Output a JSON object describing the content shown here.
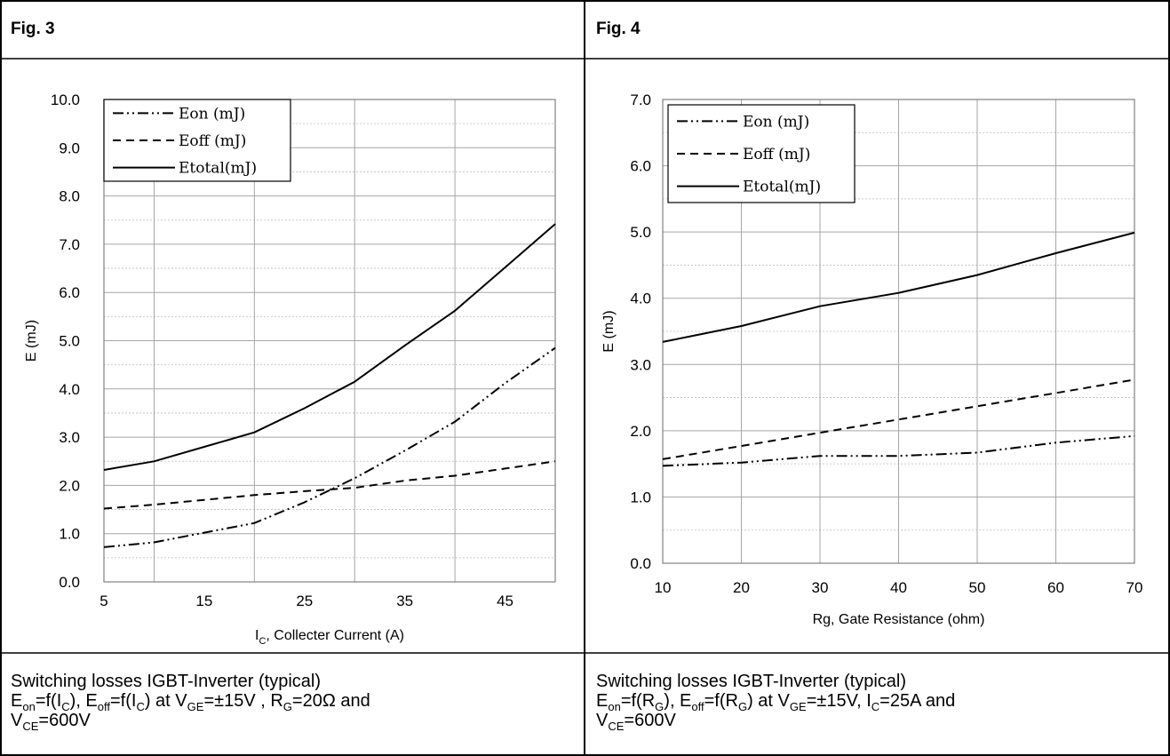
{
  "figures": [
    {
      "title": "Fig. 3",
      "caption": {
        "line1": "Switching losses IGBT-Inverter (typical)",
        "line2": [
          {
            "t": "E"
          },
          {
            "t": "on",
            "sub": true
          },
          {
            "t": "=f(I"
          },
          {
            "t": "C",
            "sub": true
          },
          {
            "t": "), E"
          },
          {
            "t": "off",
            "sub": true
          },
          {
            "t": "=f(I"
          },
          {
            "t": "C",
            "sub": true
          },
          {
            "t": ") at V"
          },
          {
            "t": "GE",
            "sub": true
          },
          {
            "t": "=±15V , R"
          },
          {
            "t": "G",
            "sub": true
          },
          {
            "t": "=20Ω and"
          }
        ],
        "line3": [
          {
            "t": "V"
          },
          {
            "t": "CE",
            "sub": true
          },
          {
            "t": "=600V"
          }
        ]
      }
    },
    {
      "title": "Fig. 4",
      "caption": {
        "line1": "Switching losses IGBT-Inverter (typical)",
        "line2": [
          {
            "t": "E"
          },
          {
            "t": "on",
            "sub": true
          },
          {
            "t": "=f(R"
          },
          {
            "t": "G",
            "sub": true
          },
          {
            "t": "), E"
          },
          {
            "t": "off",
            "sub": true
          },
          {
            "t": "=f(R"
          },
          {
            "t": "G",
            "sub": true
          },
          {
            "t": ") at V"
          },
          {
            "t": "GE",
            "sub": true
          },
          {
            "t": "=±15V, I"
          },
          {
            "t": "C",
            "sub": true
          },
          {
            "t": "=25A and"
          }
        ],
        "line3": [
          {
            "t": "V"
          },
          {
            "t": "CE",
            "sub": true
          },
          {
            "t": "=600V"
          }
        ]
      }
    }
  ],
  "chart_data": [
    {
      "type": "line",
      "xlabel": "I",
      "xlabel_sub": "C",
      "xlabel_rest": ", Collecter Current (A)",
      "ylabel": "E (mJ)",
      "xlim": [
        5,
        50
      ],
      "ylim": [
        0,
        10
      ],
      "xticks": [
        5,
        15,
        25,
        35,
        45
      ],
      "xtick_labels": [
        "5",
        "15",
        "25",
        "35",
        "45"
      ],
      "yticks": [
        0,
        1,
        2,
        3,
        4,
        5,
        6,
        7,
        8,
        9,
        10
      ],
      "ytick_labels": [
        "0.0",
        "1.0",
        "2.0",
        "3.0",
        "4.0",
        "5.0",
        "6.0",
        "7.0",
        "8.0",
        "9.0",
        "10.0"
      ],
      "vgrid": [
        10,
        20,
        30,
        40,
        50
      ],
      "legend": "top-left",
      "series": [
        {
          "name": "Eon (mJ)",
          "style": "dashdotdot",
          "x": [
            5,
            10,
            15,
            20,
            25,
            30,
            35,
            40,
            45,
            50
          ],
          "y": [
            0.72,
            0.82,
            1.02,
            1.22,
            1.65,
            2.15,
            2.72,
            3.32,
            4.12,
            4.85
          ]
        },
        {
          "name": "Eoff (mJ)",
          "style": "dash",
          "x": [
            5,
            10,
            15,
            20,
            25,
            30,
            35,
            40,
            45,
            50
          ],
          "y": [
            1.52,
            1.6,
            1.7,
            1.8,
            1.88,
            1.95,
            2.1,
            2.2,
            2.35,
            2.5
          ]
        },
        {
          "name": "Etotal(mJ)",
          "style": "solid",
          "x": [
            5,
            10,
            15,
            20,
            25,
            30,
            35,
            40,
            45,
            50
          ],
          "y": [
            2.32,
            2.5,
            2.8,
            3.1,
            3.6,
            4.15,
            4.9,
            5.62,
            6.52,
            7.42
          ]
        }
      ]
    },
    {
      "type": "line",
      "xlabel": "Rg, Gate Resistance (ohm)",
      "ylabel": "E (mJ)",
      "xlim": [
        10,
        70
      ],
      "ylim": [
        0,
        7
      ],
      "xticks": [
        10,
        20,
        30,
        40,
        50,
        60,
        70
      ],
      "xtick_labels": [
        "10",
        "20",
        "30",
        "40",
        "50",
        "60",
        "70"
      ],
      "yticks": [
        0,
        1,
        2,
        3,
        4,
        5,
        6,
        7
      ],
      "ytick_labels": [
        "0.0",
        "1.0",
        "2.0",
        "3.0",
        "4.0",
        "5.0",
        "6.0",
        "7.0"
      ],
      "legend": "top-left",
      "series": [
        {
          "name": "Eon (mJ)",
          "style": "dashdotdot",
          "x": [
            10,
            20,
            30,
            40,
            50,
            60,
            70
          ],
          "y": [
            1.47,
            1.52,
            1.62,
            1.62,
            1.67,
            1.82,
            1.92
          ]
        },
        {
          "name": "Eoff (mJ)",
          "style": "dash",
          "x": [
            10,
            20,
            30,
            40,
            50,
            60,
            70
          ],
          "y": [
            1.57,
            1.77,
            1.97,
            2.17,
            2.37,
            2.57,
            2.77
          ]
        },
        {
          "name": "Etotal(mJ)",
          "style": "solid",
          "x": [
            10,
            20,
            30,
            40,
            50,
            60,
            70
          ],
          "y": [
            3.34,
            3.58,
            3.88,
            4.08,
            4.35,
            4.68,
            4.99
          ]
        }
      ]
    }
  ]
}
